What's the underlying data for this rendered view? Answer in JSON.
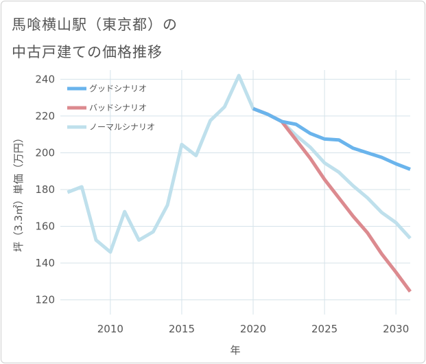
{
  "title": {
    "line1": "馬喰横山駅（東京都）の",
    "line2": "中古戸建ての価格推移"
  },
  "chart_data": {
    "type": "line",
    "title": "馬喰横山駅（東京都）の中古戸建ての価格推移",
    "xlabel": "年",
    "ylabel": "坪（3.3㎡）単価（万円）",
    "xlim": [
      2006.5,
      2031
    ],
    "ylim": [
      112,
      245
    ],
    "xticks": [
      2010,
      2015,
      2020,
      2025,
      2030
    ],
    "yticks": [
      120,
      140,
      160,
      180,
      200,
      220,
      240
    ],
    "grid": true,
    "legend_position": "top-left",
    "series": [
      {
        "name": "グッドシナリオ",
        "color": "#6ab4ec",
        "x": [
          2020,
          2021,
          2022,
          2023,
          2024,
          2025,
          2026,
          2027,
          2028,
          2029,
          2030,
          2031
        ],
        "y": [
          224,
          221,
          217,
          215.5,
          210.5,
          207.5,
          207,
          202.5,
          200,
          197.5,
          194,
          191
        ]
      },
      {
        "name": "バッドシナリオ",
        "color": "#dc8a8f",
        "x": [
          2020,
          2021,
          2022,
          2023,
          2024,
          2025,
          2026,
          2027,
          2028,
          2029,
          2030,
          2031
        ],
        "y": [
          224,
          221,
          217,
          207,
          197,
          185.5,
          175.5,
          165.5,
          156.5,
          145,
          135,
          124.5
        ]
      },
      {
        "name": "ノーマルシナリオ",
        "color": "#bfe0ec",
        "x": [
          2007,
          2008,
          2009,
          2010,
          2011,
          2012,
          2013,
          2014,
          2015,
          2016,
          2017,
          2018,
          2019,
          2020,
          2021,
          2022,
          2023,
          2024,
          2025,
          2026,
          2027,
          2028,
          2029,
          2030,
          2031
        ],
        "y": [
          178.5,
          181.5,
          152.5,
          146,
          168,
          152.5,
          157,
          171.5,
          204.5,
          198.5,
          217.5,
          225,
          242,
          224,
          221,
          217,
          209.5,
          203,
          194.5,
          189.5,
          182,
          175.5,
          167.5,
          162,
          153.5
        ]
      }
    ]
  }
}
